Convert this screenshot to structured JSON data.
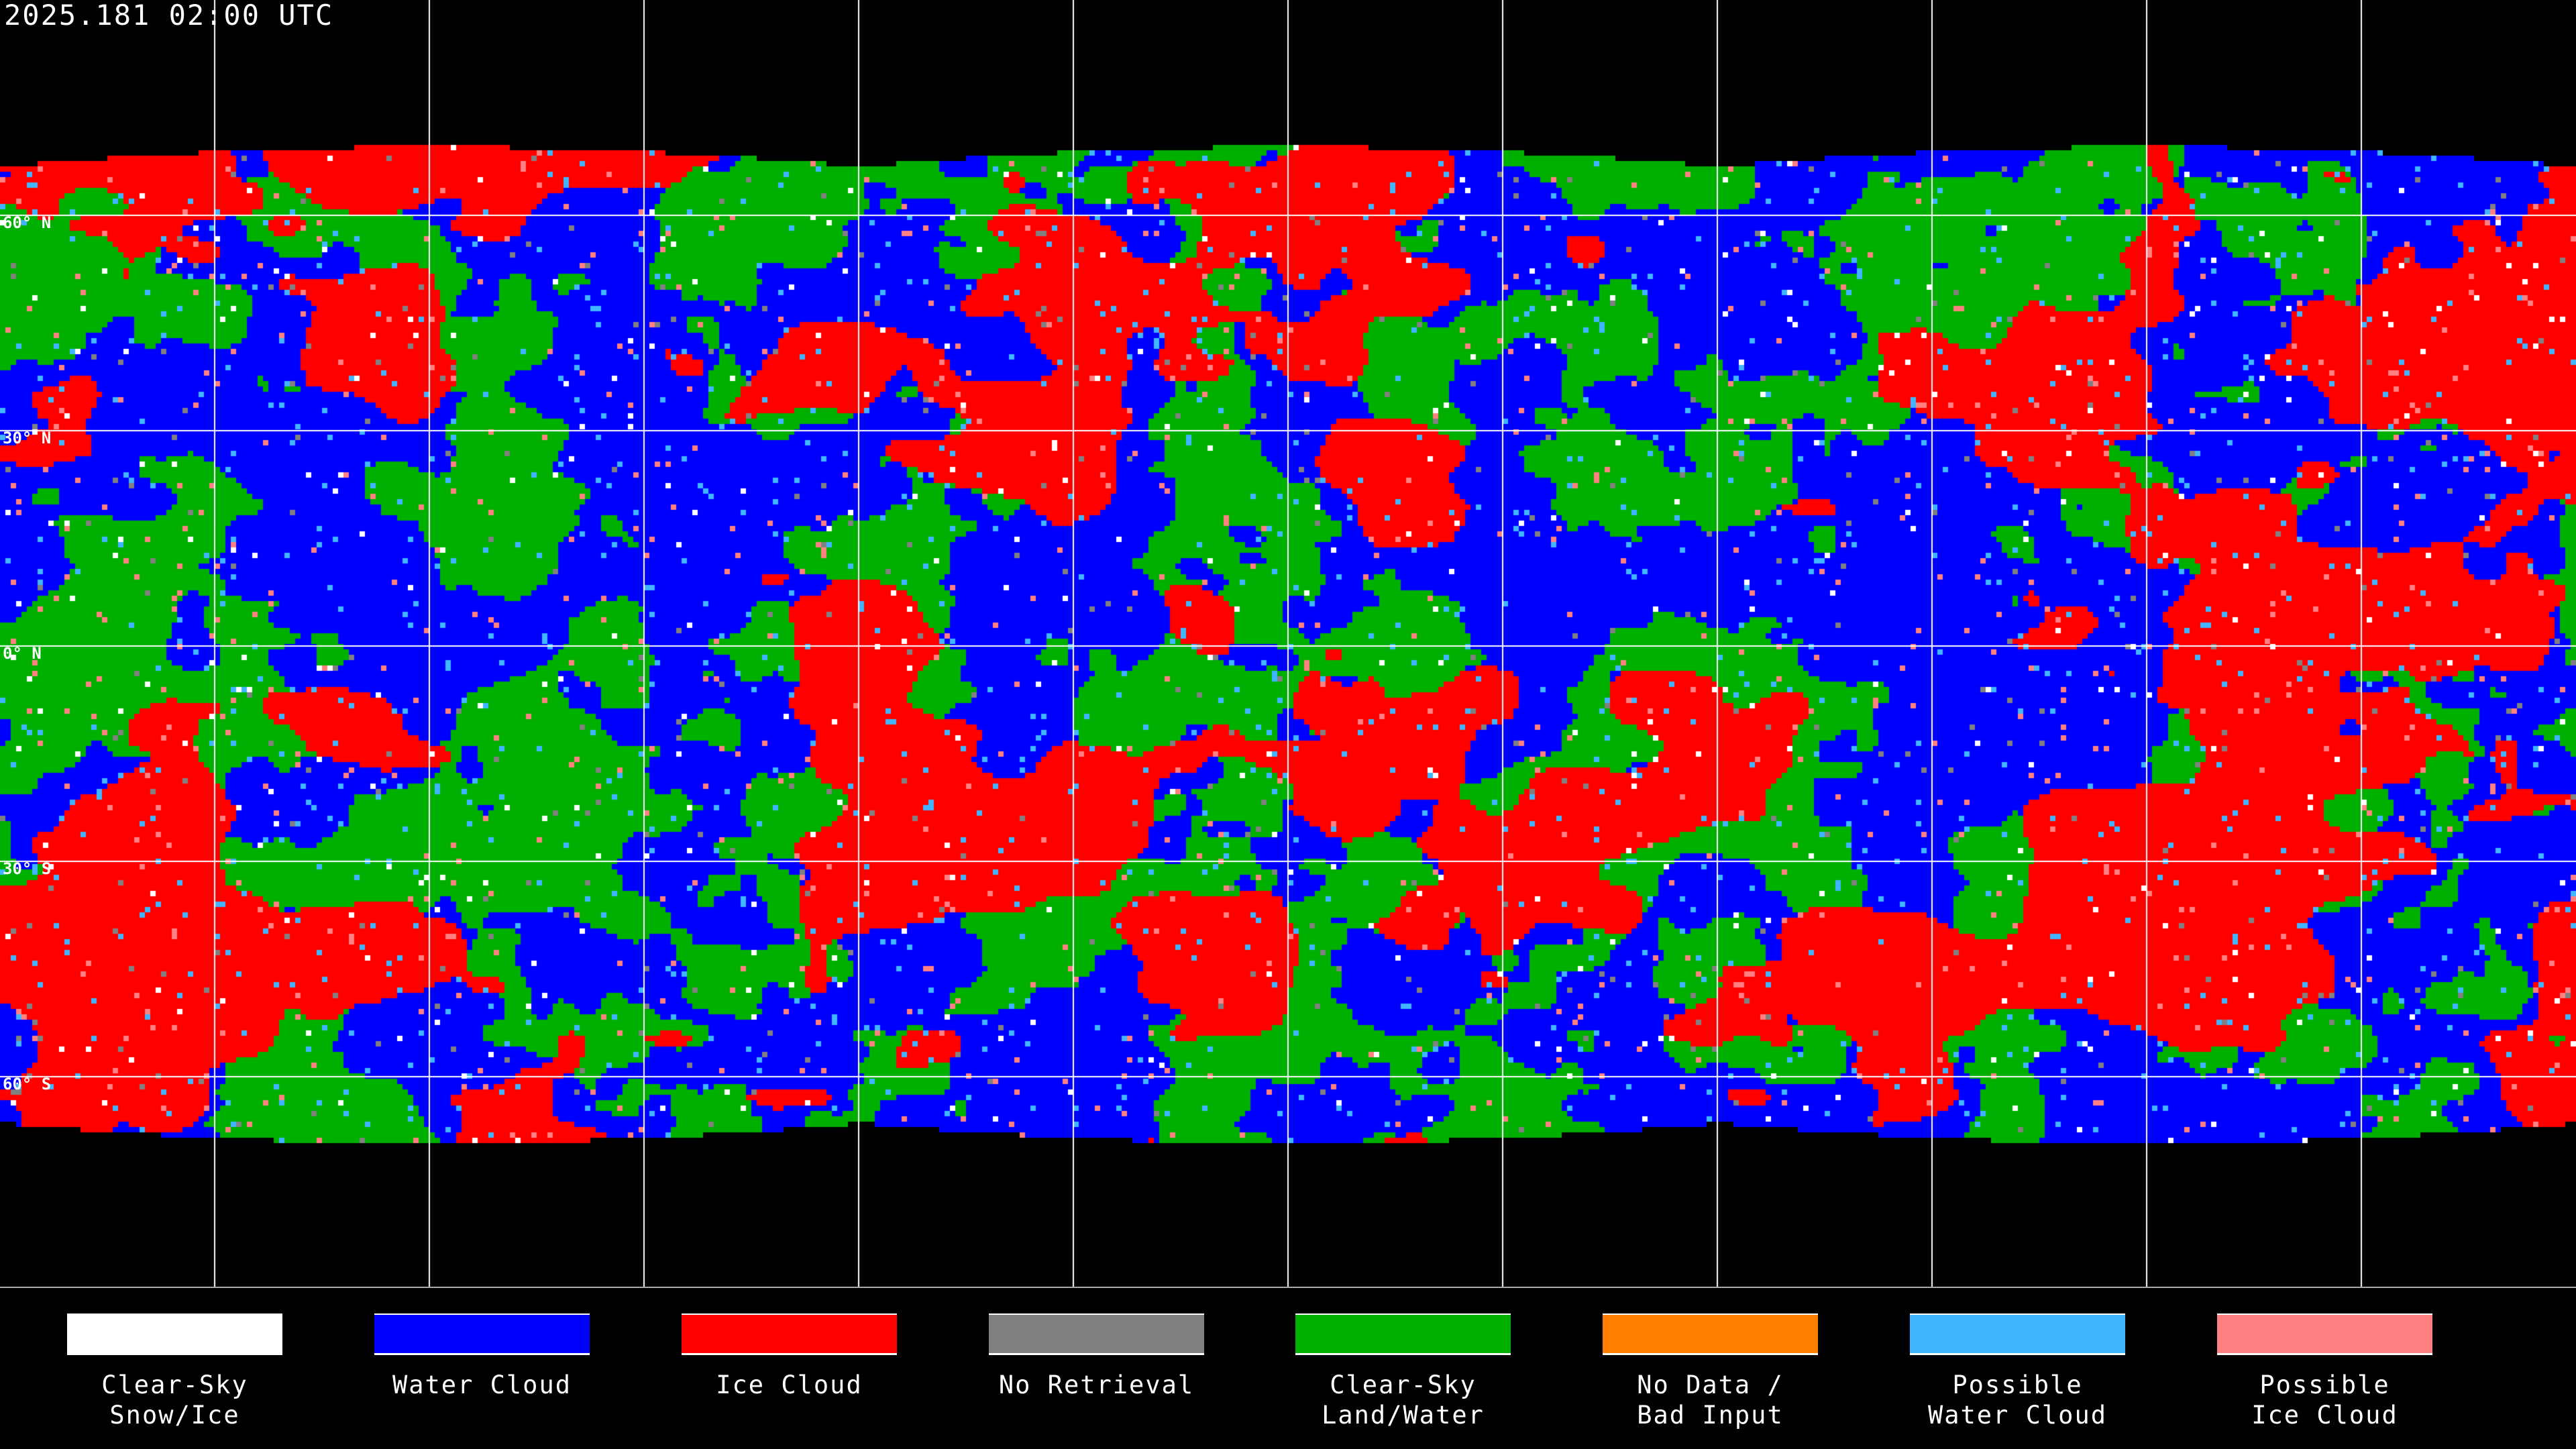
{
  "title": "2025.181 02:00 UTC",
  "map": {
    "latitude_labels": [
      "60° N",
      "30° N",
      "0° N",
      "30° S",
      "60° S"
    ],
    "gridline_spacing_degrees": 30,
    "background_color": "#000000",
    "overlay_color": "#ffffff"
  },
  "legend": [
    {
      "label": "Clear-Sky\nSnow/Ice",
      "color": "#ffffff"
    },
    {
      "label": "Water Cloud",
      "color": "#0000ff"
    },
    {
      "label": "Ice Cloud",
      "color": "#ff0000"
    },
    {
      "label": "No Retrieval",
      "color": "#808080"
    },
    {
      "label": "Clear-Sky\nLand/Water",
      "color": "#00b000"
    },
    {
      "label": "No Data /\nBad Input",
      "color": "#ff8000"
    },
    {
      "label": "Possible\nWater Cloud",
      "color": "#40b4ff"
    },
    {
      "label": "Possible\nIce Cloud",
      "color": "#ff8080"
    }
  ]
}
